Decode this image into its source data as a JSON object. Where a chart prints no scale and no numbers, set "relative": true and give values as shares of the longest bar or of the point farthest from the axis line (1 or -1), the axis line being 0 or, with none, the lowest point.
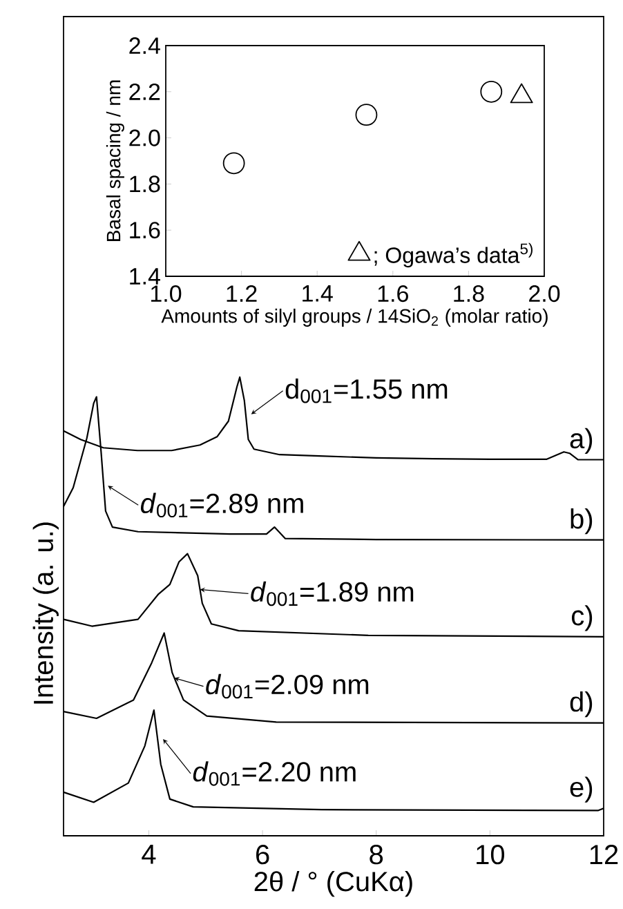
{
  "chart_data": [
    {
      "type": "scatter",
      "xlabel": "Amounts of silyl groups / 14SiO$_{2}$ (molar ratio)",
      "ylabel": "Basal spacing / nm",
      "xlim": [
        1.0,
        2.0
      ],
      "ylim": [
        1.4,
        2.4
      ],
      "xticks": [
        {
          "value": 1.0,
          "label": "1.0"
        },
        {
          "value": 1.2,
          "label": "1.2"
        },
        {
          "value": 1.4,
          "label": "1.4"
        },
        {
          "value": 1.6,
          "label": "1.6"
        },
        {
          "value": 1.8,
          "label": "1.8"
        },
        {
          "value": 2.0,
          "label": "2.0"
        }
      ],
      "yticks": [
        {
          "value": 1.4,
          "label": "1.4"
        },
        {
          "value": 1.6,
          "label": "1.6"
        },
        {
          "value": 1.8,
          "label": "1.8"
        },
        {
          "value": 2.0,
          "label": "2.0"
        },
        {
          "value": 2.2,
          "label": "2.2"
        },
        {
          "value": 2.4,
          "label": "2.4"
        }
      ],
      "legend": "bottom right",
      "series": [
        {
          "x": [
            1.18,
            1.53,
            1.86
          ],
          "values": [
            1.89,
            2.1,
            2.2
          ],
          "marker": "circle",
          "color": "#000000"
        },
        {
          "name": "; Ogawa’s data$^{5)}$",
          "x": [
            1.94
          ],
          "values": [
            2.18
          ],
          "marker": "triangle",
          "color": "#000000"
        }
      ]
    },
    {
      "type": "line",
      "relative": true,
      "xlabel": "2θ / ° (CuKα)",
      "ylabel": "Intensity (a. u.)",
      "xlim": [
        2.5,
        12
      ],
      "xticks": [
        4,
        6,
        8,
        10,
        12
      ],
      "tick_labels": "x",
      "series": [
        {
          "name": "a)",
          "color": "#000000",
          "x": [
            2.5,
            2.8,
            3.2,
            3.8,
            4.4,
            4.9,
            5.2,
            5.4,
            5.55,
            5.6,
            5.68,
            5.75,
            5.85,
            6.3,
            7.0,
            8.0,
            9.0,
            10.0,
            11.0,
            11.3,
            11.4,
            11.55,
            12
          ],
          "values": [
            0.883,
            0.864,
            0.846,
            0.84,
            0.84,
            0.852,
            0.87,
            0.904,
            0.979,
            1.0,
            0.949,
            0.864,
            0.843,
            0.831,
            0.828,
            0.824,
            0.822,
            0.821,
            0.821,
            0.837,
            0.834,
            0.82,
            0.82
          ]
        },
        {
          "name": "b)",
          "color": "#000000",
          "x": [
            2.5,
            2.67,
            2.91,
            3.03,
            3.08,
            3.16,
            3.24,
            3.36,
            3.81,
            5.43,
            6.07,
            6.21,
            6.4,
            8.0,
            12
          ],
          "values": [
            0.718,
            0.759,
            0.867,
            0.943,
            0.957,
            0.838,
            0.708,
            0.673,
            0.663,
            0.658,
            0.658,
            0.673,
            0.648,
            0.646,
            0.645
          ]
        },
        {
          "name": "c)",
          "color": "#000000",
          "x": [
            2.5,
            3.0,
            3.81,
            4.17,
            4.37,
            4.53,
            4.68,
            4.86,
            4.94,
            5.1,
            5.58,
            7.86,
            12
          ],
          "values": [
            0.472,
            0.457,
            0.472,
            0.527,
            0.548,
            0.597,
            0.615,
            0.567,
            0.507,
            0.462,
            0.447,
            0.437,
            0.434
          ]
        },
        {
          "name": "d)",
          "color": "#000000",
          "x": [
            2.5,
            3.08,
            3.73,
            4.05,
            4.27,
            4.41,
            4.61,
            5.02,
            6.24,
            12
          ],
          "values": [
            0.271,
            0.256,
            0.296,
            0.377,
            0.442,
            0.356,
            0.296,
            0.261,
            0.248,
            0.246
          ]
        },
        {
          "name": "e)",
          "color": "#000000",
          "x": [
            2.5,
            3.03,
            3.64,
            3.93,
            4.09,
            4.21,
            4.37,
            4.78,
            7.04,
            11.9,
            12
          ],
          "values": [
            0.095,
            0.073,
            0.115,
            0.196,
            0.274,
            0.156,
            0.08,
            0.063,
            0.057,
            0.055,
            0.06
          ]
        }
      ],
      "annotations": [
        {
          "text": "d$_{001}$=1.55 nm",
          "x": 5.8,
          "y": 0.919
        },
        {
          "text": "*d*$_{001}$=2.89 nm",
          "x": 3.28,
          "y": 0.763
        },
        {
          "text": "*d*$_{001}$=1.89 nm",
          "x": 4.9,
          "y": 0.537
        },
        {
          "text": "*d*$_{001}$=2.09 nm",
          "x": 4.45,
          "y": 0.344
        },
        {
          "text": "*d*$_{001}$=2.20 nm",
          "x": 4.25,
          "y": 0.211
        }
      ]
    }
  ]
}
